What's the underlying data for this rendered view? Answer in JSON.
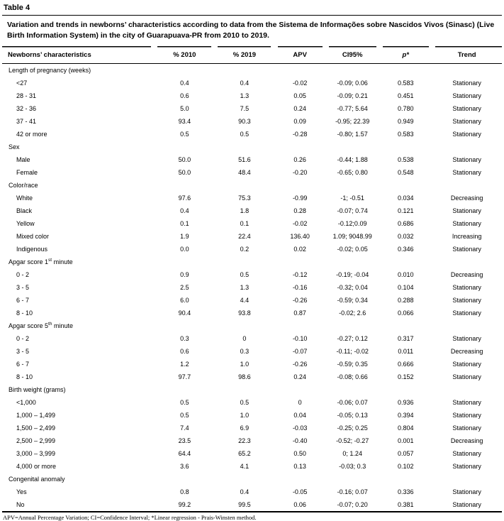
{
  "table_label": "Table 4",
  "caption": "Variation and trends in newborns’ characteristics according to data from the Sistema de Informações sobre Nascidos Vivos (Sinasc) (Live Birth Information System) in the city of Guarapuava-PR from 2010 to 2019.",
  "columns": [
    "Newborns’ characteristics",
    "% 2010",
    "% 2019",
    "APV",
    "CI95%",
    "p*",
    "Trend"
  ],
  "column_keys": [
    "characteristics",
    "pct-2010",
    "pct-2019",
    "apv",
    "ci95",
    "p-value",
    "trend"
  ],
  "sections": [
    {
      "header": "Length of pregnancy (weeks)",
      "rows": [
        [
          "<27",
          "0.4",
          "0.4",
          "-0.02",
          "-0.09; 0.06",
          "0.583",
          "Stationary"
        ],
        [
          "28 - 31",
          "0.6",
          "1.3",
          "0.05",
          "-0.09; 0.21",
          "0.451",
          "Stationary"
        ],
        [
          "32 - 36",
          "5.0",
          "7.5",
          "0.24",
          "-0.77; 5.64",
          "0.780",
          "Stationary"
        ],
        [
          "37 - 41",
          "93.4",
          "90.3",
          "0.09",
          "-0.95; 22.39",
          "0.949",
          "Stationary"
        ],
        [
          "42 or more",
          "0.5",
          "0.5",
          "-0.28",
          "-0.80; 1.57",
          "0.583",
          "Stationary"
        ]
      ]
    },
    {
      "header": "Sex",
      "rows": [
        [
          "Male",
          "50.0",
          "51.6",
          "0.26",
          "-0.44; 1.88",
          "0.538",
          "Stationary"
        ],
        [
          "Female",
          "50.0",
          "48.4",
          "-0.20",
          "-0.65; 0.80",
          "0.548",
          "Stationary"
        ]
      ]
    },
    {
      "header": "Color/race",
      "rows": [
        [
          "White",
          "97.6",
          "75.3",
          "-0.99",
          "-1; -0.51",
          "0.034",
          "Decreasing"
        ],
        [
          "Black",
          "0.4",
          "1.8",
          "0.28",
          "-0.07; 0.74",
          "0.121",
          "Stationary"
        ],
        [
          "Yellow",
          "0.1",
          "0.1",
          "-0.02",
          "-0.12;0.09",
          "0.686",
          "Stationary"
        ],
        [
          "Mixed color",
          "1.9",
          "22.4",
          "136.40",
          "1.09; 9048.99",
          "0.032",
          "Increasing"
        ],
        [
          "Indigenous",
          "0.0",
          "0.2",
          "0.02",
          "-0.02; 0.05",
          "0.346",
          "Stationary"
        ]
      ]
    },
    {
      "header": "Apgar score 1^st^ minute",
      "rows": [
        [
          "0 - 2",
          "0.9",
          "0.5",
          "-0.12",
          "-0.19; -0.04",
          "0.010",
          "Decreasing"
        ],
        [
          "3 - 5",
          "2.5",
          "1.3",
          "-0.16",
          "-0.32; 0.04",
          "0.104",
          "Stationary"
        ],
        [
          "6 - 7",
          "6.0",
          "4.4",
          "-0.26",
          "-0.59; 0.34",
          "0.288",
          "Stationary"
        ],
        [
          "8 - 10",
          "90.4",
          "93.8",
          "0.87",
          "-0.02; 2.6",
          "0.066",
          "Stationary"
        ]
      ]
    },
    {
      "header": "Apgar score 5^th^ minute",
      "rows": [
        [
          "0 - 2",
          "0.3",
          "0",
          "-0.10",
          "-0.27; 0.12",
          "0.317",
          "Stationary"
        ],
        [
          "3 - 5",
          "0.6",
          "0.3",
          "-0.07",
          "-0.11; -0.02",
          "0.011",
          "Decreasing"
        ],
        [
          "6 - 7",
          "1.2",
          "1.0",
          "-0.26",
          "-0.59; 0.35",
          "0.666",
          "Stationary"
        ],
        [
          "8 - 10",
          "97.7",
          "98.6",
          "0.24",
          "-0.08; 0.66",
          "0.152",
          "Stationary"
        ]
      ]
    },
    {
      "header": "Birth weight (grams)",
      "rows": [
        [
          "<1,000",
          "0.5",
          "0.5",
          "0",
          "-0.06; 0.07",
          "0.936",
          "Stationary"
        ],
        [
          "1,000 – 1,499",
          "0.5",
          "1.0",
          "0.04",
          "-0.05; 0.13",
          "0.394",
          "Stationary"
        ],
        [
          "1,500 – 2,499",
          "7.4",
          "6.9",
          "-0.03",
          "-0.25; 0.25",
          "0.804",
          "Stationary"
        ],
        [
          "2,500 – 2,999",
          "23.5",
          "22.3",
          "-0.40",
          "-0.52; -0.27",
          "0.001",
          "Decreasing"
        ],
        [
          "3,000 – 3,999",
          "64.4",
          "65.2",
          "0.50",
          "0; 1.24",
          "0.057",
          "Stationary"
        ],
        [
          "4,000 or more",
          "3.6",
          "4.1",
          "0.13",
          "-0.03; 0.3",
          "0.102",
          "Stationary"
        ]
      ]
    },
    {
      "header": "Congenital anomaly",
      "rows": [
        [
          "Yes",
          "0.8",
          "0.4",
          "-0.05",
          "-0.16; 0.07",
          "0.336",
          "Stationary"
        ],
        [
          "No",
          "99.2",
          "99.5",
          "0.06",
          "-0.07; 0.20",
          "0.381",
          "Stationary"
        ]
      ]
    }
  ],
  "footnote": "APV=Annual Percentage Variation; CI=Confidence Interval; *Linear regression - Prais-Winsten method."
}
